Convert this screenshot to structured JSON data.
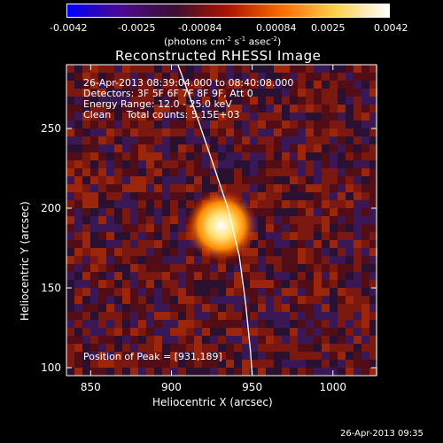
{
  "chart_data": {
    "type": "heatmap",
    "title": "Reconstructed RHESSI Image",
    "xlabel": "Heliocentric X (arcsec)",
    "ylabel": "Heliocentric Y (arcsec)",
    "xlim": [
      835,
      1027
    ],
    "ylim": [
      95,
      290
    ],
    "x_ticks": [
      850,
      900,
      950,
      1000
    ],
    "y_ticks": [
      100,
      150,
      200,
      250
    ],
    "peak": {
      "x": 931,
      "y": 189
    },
    "source_sigma_arcsec": 7,
    "limb_curve": [
      [
        904,
        290
      ],
      [
        915,
        260
      ],
      [
        925,
        230
      ],
      [
        935,
        200
      ],
      [
        942,
        170
      ],
      [
        946,
        140
      ],
      [
        949,
        110
      ],
      [
        950,
        95
      ]
    ],
    "colorbar": {
      "ticks": [
        "-0.0042",
        "-0.0025",
        "-0.00084",
        "0.00084",
        "0.0025",
        "0.0042"
      ],
      "range": [
        -0.0042,
        0.0042
      ],
      "unit_label": "(photons cm",
      "unit_sup1": "-2",
      "unit_mid": " s",
      "unit_sup2": "-1",
      "unit_mid2": " asec",
      "unit_sup3": "-2",
      "unit_end": ")",
      "colors": [
        "#0000ff",
        "#4b0a8f",
        "#3a1030",
        "#aa1500",
        "#ff6a00",
        "#ffd050",
        "#ffffff"
      ]
    }
  },
  "annotations": {
    "line1": "26-Apr-2013 08:39:04.000 to 08:40:08.000",
    "line2": "Detectors: 3F 5F 6F 7F 8F 9F, Att 0",
    "line3": "Energy Range: 12.0 - 25.0 keV",
    "line4": "Clean     Total counts: 5.15E+03",
    "peak_label": "Position of Peak = [931,189]"
  },
  "footer": {
    "timestamp": "26-Apr-2013 09:35"
  }
}
